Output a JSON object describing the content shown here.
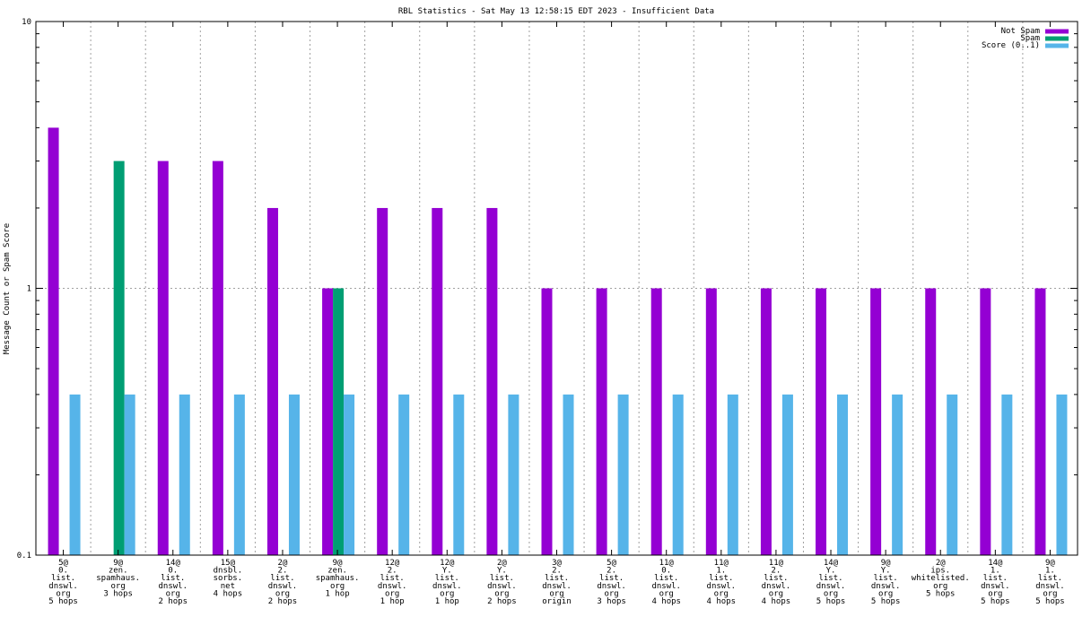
{
  "chart_data": {
    "type": "bar",
    "title": "RBL Statistics - Sat May 13 12:58:15 EDT 2023 - Insufficient Data",
    "xlabel": "",
    "ylabel": "Message Count or Spam Score",
    "yscale": "log",
    "ylim": [
      0.1,
      10
    ],
    "y_ticks": [
      {
        "value": 0.1,
        "label": "0.1"
      },
      {
        "value": 1,
        "label": "1"
      },
      {
        "value": 10,
        "label": "10"
      }
    ],
    "grid": true,
    "legend_position": "top-right",
    "categories": [
      [
        "5@",
        "0.",
        "list.",
        "dnswl.",
        "org",
        "5 hops"
      ],
      [
        "9@",
        "zen.",
        "spamhaus.",
        "org",
        "3 hops"
      ],
      [
        "14@",
        "0.",
        "list.",
        "dnswl.",
        "org",
        "2 hops"
      ],
      [
        "15@",
        "dnsbl.",
        "sorbs.",
        "net",
        "4 hops"
      ],
      [
        "2@",
        "2.",
        "list.",
        "dnswl.",
        "org",
        "2 hops"
      ],
      [
        "9@",
        "zen.",
        "spamhaus.",
        "org",
        "1 hop"
      ],
      [
        "12@",
        "2.",
        "list.",
        "dnswl.",
        "org",
        "1 hop"
      ],
      [
        "12@",
        "Y.",
        "list.",
        "dnswl.",
        "org",
        "1 hop"
      ],
      [
        "2@",
        "Y.",
        "list.",
        "dnswl.",
        "org",
        "2 hops"
      ],
      [
        "3@",
        "2.",
        "list.",
        "dnswl.",
        "org",
        "origin"
      ],
      [
        "5@",
        "2.",
        "list.",
        "dnswl.",
        "org",
        "3 hops"
      ],
      [
        "11@",
        "0.",
        "list.",
        "dnswl.",
        "org",
        "4 hops"
      ],
      [
        "11@",
        "1.",
        "list.",
        "dnswl.",
        "org",
        "4 hops"
      ],
      [
        "11@",
        "2.",
        "list.",
        "dnswl.",
        "org",
        "4 hops"
      ],
      [
        "14@",
        "Y.",
        "list.",
        "dnswl.",
        "org",
        "5 hops"
      ],
      [
        "9@",
        "Y.",
        "list.",
        "dnswl.",
        "org",
        "5 hops"
      ],
      [
        "2@",
        "ips.",
        "whitelisted.",
        "org",
        "5 hops"
      ],
      [
        "14@",
        "1.",
        "list.",
        "dnswl.",
        "org",
        "5 hops"
      ],
      [
        "9@",
        "1.",
        "list.",
        "dnswl.",
        "org",
        "5 hops"
      ]
    ],
    "series": [
      {
        "name": "Not Spam",
        "color": "#9400d3",
        "values": [
          4,
          0,
          3,
          3,
          2,
          1,
          2,
          2,
          2,
          1,
          1,
          1,
          1,
          1,
          1,
          1,
          1,
          1,
          1
        ]
      },
      {
        "name": "Spam",
        "color": "#009e73",
        "values": [
          0,
          3,
          0,
          0,
          0,
          1,
          0,
          0,
          0,
          0,
          0,
          0,
          0,
          0,
          0,
          0,
          0,
          0,
          0
        ]
      },
      {
        "name": "Score (0..1)",
        "color": "#56b4e9",
        "values": [
          0.4,
          0.4,
          0.4,
          0.4,
          0.4,
          0.4,
          0.4,
          0.4,
          0.4,
          0.4,
          0.4,
          0.4,
          0.4,
          0.4,
          0.4,
          0.4,
          0.4,
          0.4,
          0.4
        ]
      }
    ]
  }
}
